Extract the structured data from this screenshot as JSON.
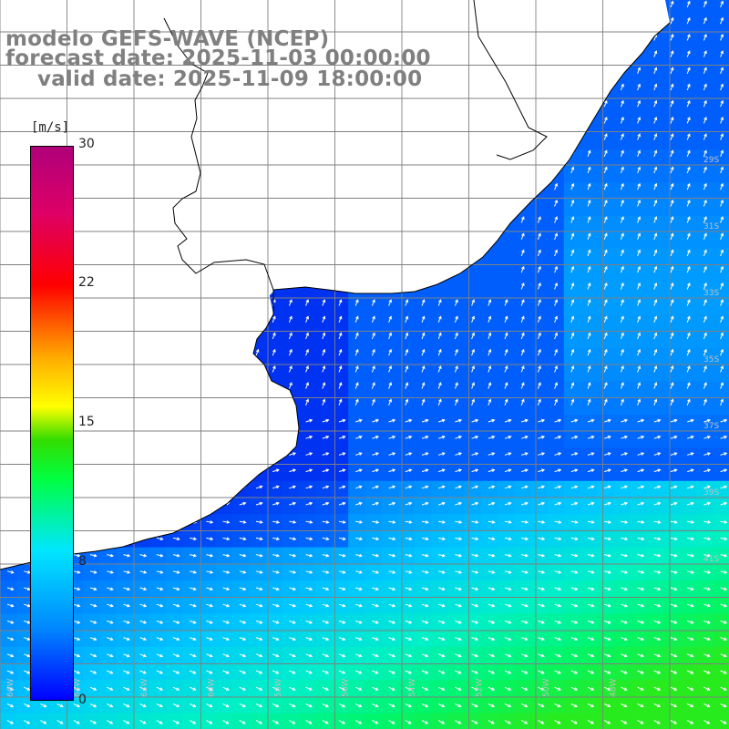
{
  "title": {
    "line1": "modelo GEFS-WAVE (NCEP)",
    "line2": "forecast date: 2025-11-03 00:00:00",
    "line3": "valid date: 2025-11-09 18:00:00"
  },
  "colorbar": {
    "unit": "[m/s]",
    "ticks": [
      "30",
      "22",
      "15",
      "8",
      "0"
    ],
    "min": 0,
    "max": 30,
    "colors": [
      "#0000ff",
      "#0088ff",
      "#00e6ff",
      "#00ff40",
      "#ffff00",
      "#ff0000",
      "#b0007a"
    ]
  },
  "map": {
    "variable": "wind speed and direction",
    "lat_labels": [
      "29S",
      "31S",
      "33S",
      "35S",
      "37S",
      "39S",
      "41S"
    ],
    "lon_labels": [
      "66W",
      "64W",
      "62W",
      "60W",
      "58W",
      "56W",
      "54W",
      "52W",
      "50W",
      "48W"
    ],
    "land_color": "#ffffff",
    "coast_color": "#000000",
    "grid_color": "#808080"
  }
}
